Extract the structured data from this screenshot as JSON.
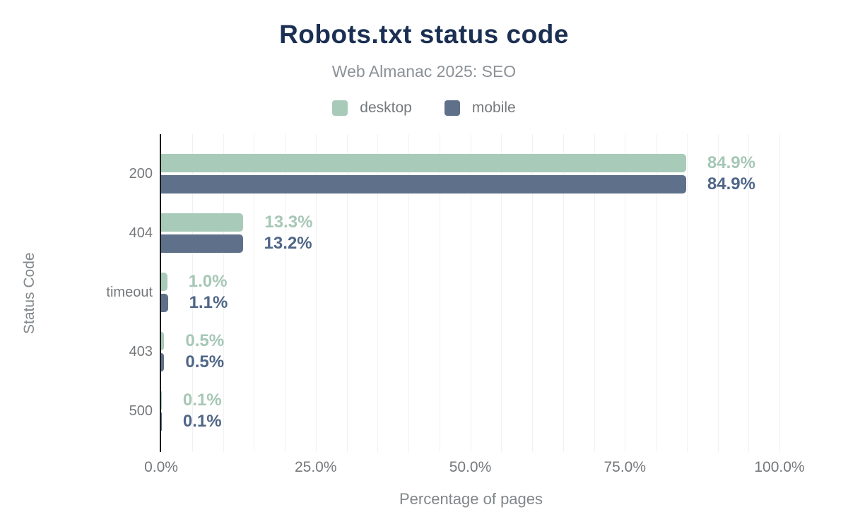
{
  "header": {
    "title": "Robots.txt status code",
    "subtitle": "Web Almanac 2025: SEO"
  },
  "legend": {
    "items": [
      {
        "label": "desktop",
        "color": "#a8cab9"
      },
      {
        "label": "mobile",
        "color": "#5f718a"
      }
    ]
  },
  "chart_data": {
    "type": "bar",
    "orientation": "horizontal",
    "title": "Robots.txt status code",
    "subtitle": "Web Almanac 2025: SEO",
    "categories": [
      "200",
      "404",
      "timeout",
      "403",
      "500"
    ],
    "series": [
      {
        "name": "desktop",
        "color": "#a8cab9",
        "label_color": "#a6c7b6",
        "values": [
          84.9,
          13.3,
          1.0,
          0.5,
          0.1
        ],
        "labels": [
          "84.9%",
          "13.3%",
          "1.0%",
          "0.5%",
          "0.1%"
        ]
      },
      {
        "name": "mobile",
        "color": "#5f718a",
        "label_color": "#4f6687",
        "values": [
          84.9,
          13.2,
          1.1,
          0.5,
          0.1
        ],
        "labels": [
          "84.9%",
          "13.2%",
          "1.1%",
          "0.5%",
          "0.1%"
        ]
      }
    ],
    "xlabel": "Percentage of pages",
    "ylabel": "Status Code",
    "xlim": [
      0,
      100
    ],
    "x_ticks": [
      {
        "value": 0,
        "label": "0.0%"
      },
      {
        "value": 25,
        "label": "25.0%"
      },
      {
        "value": 50,
        "label": "50.0%"
      },
      {
        "value": 75,
        "label": "75.0%"
      },
      {
        "value": 100,
        "label": "100.0%"
      }
    ],
    "grid": {
      "minor_step_percent": 5,
      "color": "#f0f1f0",
      "legend_position": "top"
    }
  }
}
